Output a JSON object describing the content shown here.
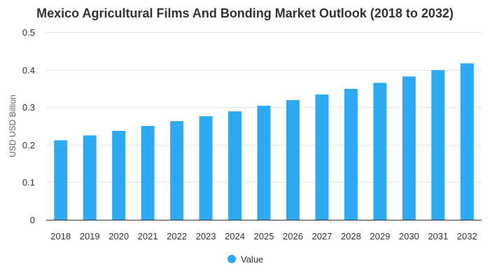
{
  "chart_data": {
    "type": "bar",
    "title": "Mexico Agricultural Films And Bonding Market Outlook (2018 to 2032)",
    "xlabel": "",
    "ylabel": "USD USD Billion",
    "categories": [
      "2018",
      "2019",
      "2020",
      "2021",
      "2022",
      "2023",
      "2024",
      "2025",
      "2026",
      "2027",
      "2028",
      "2029",
      "2030",
      "2031",
      "2032"
    ],
    "series": [
      {
        "name": "Value",
        "color": "#2eaaf5",
        "values": [
          0.212,
          0.225,
          0.237,
          0.25,
          0.263,
          0.276,
          0.289,
          0.304,
          0.319,
          0.334,
          0.349,
          0.365,
          0.382,
          0.399,
          0.417
        ]
      }
    ],
    "ylim": [
      0,
      0.5
    ],
    "yticks": [
      "0",
      "0.1",
      "0.2",
      "0.3",
      "0.4",
      "0.5"
    ],
    "ytick_values": [
      0,
      0.1,
      0.2,
      0.3,
      0.4,
      0.5
    ],
    "grid": true,
    "legend": "bottom-center"
  }
}
